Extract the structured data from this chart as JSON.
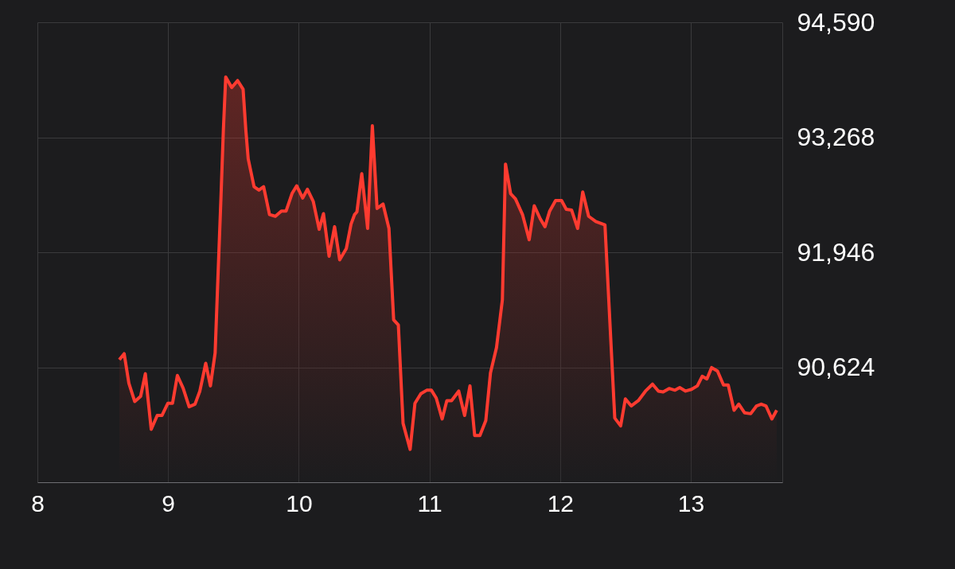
{
  "chart_data": {
    "type": "area",
    "xlim": [
      8,
      13.7
    ],
    "xticks": [
      8,
      9,
      10,
      11,
      12,
      13,
      {
        "value": 13.7,
        "label": null
      }
    ],
    "ylim": [
      89302,
      94590
    ],
    "yticks": [
      {
        "value": 90624,
        "label": "90,624"
      },
      {
        "value": 91946,
        "label": "91,946"
      },
      {
        "value": 93268,
        "label": "93,268"
      },
      {
        "value": 94590,
        "label": "94,590"
      }
    ],
    "grid": true,
    "series": [
      {
        "color": "#ff3b30",
        "x": [
          8.627,
          8.664,
          8.7,
          8.745,
          8.79,
          8.826,
          8.871,
          8.917,
          8.953,
          8.998,
          9.034,
          9.071,
          9.116,
          9.161,
          9.206,
          9.243,
          9.288,
          9.324,
          9.36,
          9.378,
          9.405,
          9.423,
          9.441,
          9.487,
          9.532,
          9.574,
          9.595,
          9.613,
          9.658,
          9.695,
          9.731,
          9.776,
          9.821,
          9.867,
          9.903,
          9.948,
          9.984,
          10.03,
          10.066,
          10.111,
          10.156,
          10.189,
          10.232,
          10.274,
          10.313,
          10.364,
          10.4,
          10.427,
          10.445,
          10.482,
          10.527,
          10.563,
          10.599,
          10.645,
          10.69,
          10.726,
          10.762,
          10.798,
          10.852,
          10.889,
          10.934,
          10.979,
          11.015,
          11.052,
          11.097,
          11.133,
          11.169,
          11.224,
          11.269,
          11.31,
          11.346,
          11.386,
          11.431,
          11.467,
          11.513,
          11.558,
          11.582,
          11.621,
          11.658,
          11.712,
          11.763,
          11.802,
          11.848,
          11.884,
          11.92,
          11.965,
          12.011,
          12.047,
          12.088,
          12.134,
          12.173,
          12.218,
          12.273,
          12.343,
          12.418,
          12.463,
          12.499,
          12.544,
          12.598,
          12.653,
          12.707,
          12.752,
          12.788,
          12.834,
          12.879,
          12.915,
          12.96,
          13.005,
          13.05,
          13.087,
          13.123,
          13.159,
          13.204,
          13.25,
          13.286,
          13.331,
          13.367,
          13.412,
          13.458,
          13.503,
          13.539,
          13.575,
          13.62,
          13.657
        ],
        "values": [
          90710,
          90780,
          90440,
          90230,
          90290,
          90550,
          89910,
          90070,
          90070,
          90210,
          90210,
          90530,
          90380,
          90170,
          90200,
          90350,
          90670,
          90410,
          90790,
          91520,
          92590,
          93350,
          93960,
          93840,
          93920,
          93820,
          93350,
          93020,
          92700,
          92660,
          92700,
          92380,
          92360,
          92420,
          92420,
          92620,
          92710,
          92570,
          92670,
          92530,
          92210,
          92390,
          91900,
          92240,
          91860,
          91990,
          92270,
          92380,
          92410,
          92850,
          92220,
          93400,
          92450,
          92500,
          92220,
          91170,
          91110,
          89980,
          89680,
          90210,
          90320,
          90360,
          90360,
          90270,
          90030,
          90240,
          90240,
          90350,
          90070,
          90410,
          89840,
          89840,
          90010,
          90560,
          90850,
          91400,
          92960,
          92620,
          92560,
          92380,
          92090,
          92480,
          92330,
          92240,
          92420,
          92540,
          92540,
          92440,
          92430,
          92220,
          92640,
          92360,
          92300,
          92260,
          90040,
          89950,
          90260,
          90180,
          90240,
          90350,
          90430,
          90350,
          90340,
          90380,
          90360,
          90390,
          90350,
          90370,
          90410,
          90520,
          90490,
          90620,
          90580,
          90420,
          90420,
          90130,
          90200,
          90100,
          90090,
          90180,
          90200,
          90180,
          90030,
          90130
        ]
      }
    ]
  }
}
